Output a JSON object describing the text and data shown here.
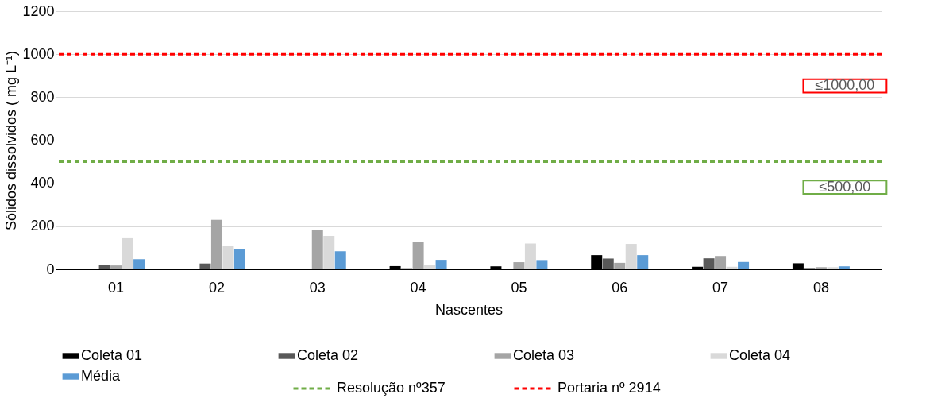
{
  "chart_data": {
    "type": "bar",
    "xlabel": "Nascentes",
    "ylabel": "Sólidos dissolvidos ( mg L⁻¹)",
    "categories": [
      "01",
      "02",
      "03",
      "04",
      "05",
      "06",
      "07",
      "08"
    ],
    "series": [
      {
        "name": "Coleta 01",
        "color": "#000000",
        "values": [
          0,
          0,
          0,
          15,
          14,
          66,
          12,
          28
        ]
      },
      {
        "name": "Coleta 02",
        "color": "#595959",
        "values": [
          22,
          27,
          0,
          5,
          0,
          50,
          51,
          6
        ]
      },
      {
        "name": "Coleta 03",
        "color": "#a5a5a5",
        "values": [
          18,
          230,
          182,
          127,
          33,
          30,
          62,
          10
        ]
      },
      {
        "name": "Coleta 04",
        "color": "#d9d9d9",
        "values": [
          148,
          107,
          155,
          22,
          120,
          118,
          12,
          10
        ]
      },
      {
        "name": "Média",
        "color": "#5b9bd5",
        "values": [
          47,
          93,
          84,
          44,
          43,
          66,
          34,
          14
        ]
      }
    ],
    "ref_lines": [
      {
        "axis": "y",
        "value": 500,
        "label": "Resolução nº357",
        "color": "#70ad47",
        "line_style": "dashed"
      },
      {
        "axis": "y",
        "value": 1000,
        "label": "Portaria nº 2914",
        "color": "#ff0000",
        "line_style": "dashed"
      }
    ],
    "annotations": [
      {
        "text": "≤500,00",
        "x": "08",
        "y": 500
      },
      {
        "text": "≤1000,00",
        "x": "08",
        "y": 1000
      }
    ],
    "ylim": [
      0,
      1200
    ],
    "yticks": [
      0,
      200,
      400,
      600,
      800,
      1000,
      1200
    ],
    "grid": "y",
    "legend": "bottom"
  }
}
